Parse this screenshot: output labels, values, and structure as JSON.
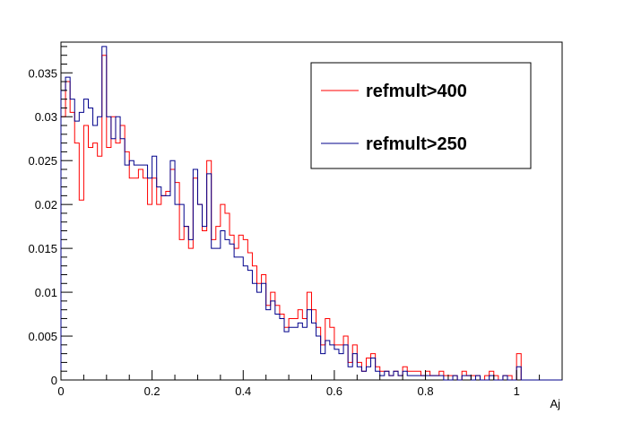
{
  "chart_data": {
    "type": "line",
    "style": "step-histogram",
    "xlabel": "Aj",
    "ylabel": "",
    "title": "",
    "xlim": [
      0,
      1.1
    ],
    "ylim": [
      0,
      0.0385
    ],
    "x_ticks": [
      {
        "value": 0,
        "label": "0"
      },
      {
        "value": 0.2,
        "label": "0.2"
      },
      {
        "value": 0.4,
        "label": "0.4"
      },
      {
        "value": 0.6,
        "label": "0.6"
      },
      {
        "value": 0.8,
        "label": "0.8"
      },
      {
        "value": 1.0,
        "label": "1"
      }
    ],
    "y_ticks": [
      {
        "value": 0,
        "label": "0"
      },
      {
        "value": 0.005,
        "label": "0.005"
      },
      {
        "value": 0.01,
        "label": "0.01"
      },
      {
        "value": 0.015,
        "label": "0.015"
      },
      {
        "value": 0.02,
        "label": "0.02"
      },
      {
        "value": 0.025,
        "label": "0.025"
      },
      {
        "value": 0.03,
        "label": "0.03"
      },
      {
        "value": 0.035,
        "label": "0.035"
      }
    ],
    "grid": false,
    "legend_position": "top-right",
    "bin_width": 0.01,
    "bin_start": 0,
    "series": [
      {
        "name": "refmult>400",
        "color": "#ff0000",
        "values": [
          0.03,
          0.034,
          0.0305,
          0.027,
          0.0205,
          0.029,
          0.0265,
          0.027,
          0.0255,
          0.037,
          0.0265,
          0.03,
          0.027,
          0.029,
          0.026,
          0.023,
          0.023,
          0.024,
          0.023,
          0.02,
          0.023,
          0.02,
          0.021,
          0.0215,
          0.024,
          0.0225,
          0.016,
          0.0175,
          0.015,
          0.023,
          0.02,
          0.017,
          0.025,
          0.016,
          0.0175,
          0.02,
          0.019,
          0.0165,
          0.015,
          0.0165,
          0.016,
          0.0145,
          0.013,
          0.011,
          0.012,
          0.0085,
          0.01,
          0.0085,
          0.0075,
          0.006,
          0.007,
          0.007,
          0.008,
          0.007,
          0.01,
          0.008,
          0.006,
          0.004,
          0.007,
          0.006,
          0.004,
          0.004,
          0.005,
          0.002,
          0.004,
          0.002,
          0.001,
          0.0025,
          0.003,
          0.0015,
          0.001,
          0.001,
          0.0005,
          0.001,
          0.0005,
          0.0015,
          0.001,
          0.001,
          0.001,
          0.0005,
          0.001,
          0.0005,
          0.0005,
          0.001,
          0.0005,
          0.0005,
          0.0005,
          0.0,
          0.001,
          0.0005,
          0.0005,
          0.0005,
          0.0,
          0.0005,
          0.001,
          0.0005,
          0.0,
          0.0005,
          0.0005,
          0.0,
          0.003,
          0.0,
          0.0,
          0.0,
          0.0,
          0.0,
          0.0,
          0.0,
          0.0,
          0.0
        ]
      },
      {
        "name": "refmult>250",
        "color": "#00008b",
        "values": [
          0.033,
          0.0345,
          0.032,
          0.0295,
          0.0305,
          0.032,
          0.031,
          0.029,
          0.03,
          0.038,
          0.03,
          0.0275,
          0.03,
          0.0275,
          0.0245,
          0.025,
          0.0245,
          0.0245,
          0.0245,
          0.023,
          0.0255,
          0.022,
          0.021,
          0.021,
          0.025,
          0.02,
          0.02,
          0.0175,
          0.016,
          0.024,
          0.02,
          0.0175,
          0.0235,
          0.015,
          0.015,
          0.017,
          0.016,
          0.0155,
          0.014,
          0.014,
          0.013,
          0.0125,
          0.011,
          0.01,
          0.011,
          0.008,
          0.009,
          0.0075,
          0.007,
          0.0055,
          0.006,
          0.006,
          0.0065,
          0.006,
          0.008,
          0.0065,
          0.005,
          0.003,
          0.0045,
          0.004,
          0.0035,
          0.003,
          0.004,
          0.0015,
          0.003,
          0.0015,
          0.001,
          0.0015,
          0.0025,
          0.001,
          0.0005,
          0.001,
          0.0005,
          0.001,
          0.0005,
          0.001,
          0.0005,
          0.0005,
          0.0005,
          0.0005,
          0.0005,
          0.0005,
          0.0005,
          0.0005,
          0.0,
          0.0,
          0.0005,
          0.0,
          0.0005,
          0.0005,
          0.0,
          0.0005,
          0.0,
          0.0,
          0.0005,
          0.0,
          0.0,
          0.0005,
          0.0,
          0.0,
          0.0015,
          0.0,
          0.0,
          0.0,
          0.0,
          0.0,
          0.0,
          0.0,
          0.0,
          0.0
        ]
      }
    ]
  }
}
